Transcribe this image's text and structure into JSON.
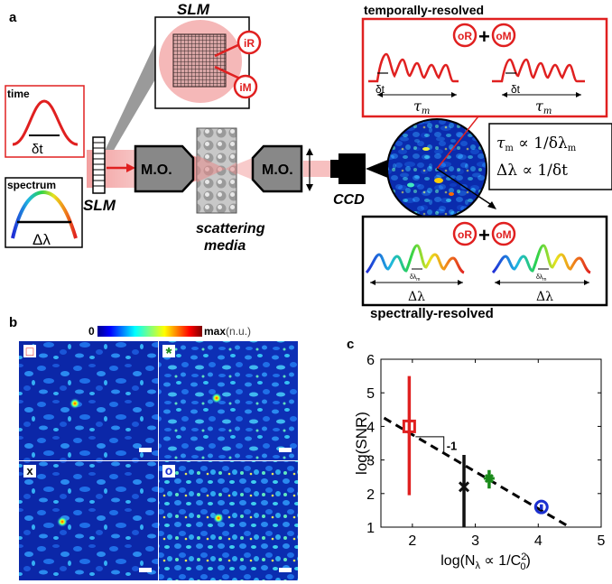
{
  "panel_labels": {
    "a": "a",
    "b": "b",
    "c": "c"
  },
  "panel_a": {
    "slm_top_title": "SLM",
    "slm_bottom_label": "SLM",
    "ir_badge": "iR",
    "im_badge": "iM",
    "time_box": {
      "title": "time",
      "pulse_label": "δt"
    },
    "spectrum_box": {
      "title": "spectrum",
      "width_label": "Δλ"
    },
    "objective_left": "M.O.",
    "objective_right": "M.O.",
    "scatter_label_1": "scattering",
    "scatter_label_2": "media",
    "ccd_label": "CCD",
    "temporal": {
      "heading": "temporally-resolved",
      "badge_or": "oR",
      "badge_om": "oM",
      "plus": "+",
      "dt_left": "δt",
      "dt_right": "δt",
      "tau_left": "τ",
      "tau_right": "τ",
      "tau_sub": "m"
    },
    "relations": {
      "line1": "τ",
      "line1_sub": "m",
      "line1_rest": " ∝ 1/δλ",
      "line1_rest_sub": "m",
      "line2": "Δλ ∝ 1/δt"
    },
    "spectral": {
      "heading": "spectrally-resolved",
      "badge_or": "oR",
      "badge_om": "oM",
      "plus": "+",
      "dlm_left": "δλ",
      "dlm_right": "δλ",
      "dlm_sub": "m",
      "dl_left": "Δλ",
      "dl_right": "Δλ"
    }
  },
  "panel_b": {
    "colorbar_min": "0",
    "colorbar_max": "max",
    "colorbar_unit": "(n.u.)",
    "markers": [
      "□",
      "*",
      "x",
      "o"
    ],
    "marker_colors": [
      "#e02020",
      "#1a8a1a",
      "#111111",
      "#1a2fd0"
    ]
  },
  "chart_data": {
    "type": "scatter",
    "xlabel": "log(N",
    "xlabel_sub": "λ",
    "xlabel_rest": " ∝ 1/C",
    "xlabel_rest_sup": "2",
    "xlabel_rest_sub": "0",
    "xlabel_end": ")",
    "ylabel": "log(SNR)",
    "xlim": [
      1.5,
      5
    ],
    "ylim": [
      1,
      6
    ],
    "xticks": [
      "2",
      "3",
      "4",
      "5"
    ],
    "yticks": [
      "1",
      "2",
      "3",
      "4",
      "5",
      "6"
    ],
    "slope_label": "-1",
    "fit_line": {
      "x": [
        1.55,
        4.5
      ],
      "y": [
        4.25,
        0.95
      ]
    },
    "series": [
      {
        "marker": "square",
        "color": "#e02020",
        "x": 1.95,
        "y": 4.0,
        "err_low": 2.05,
        "err_high": 1.5
      },
      {
        "marker": "x",
        "color": "#111111",
        "x": 2.82,
        "y": 2.2,
        "err_low": 1.2,
        "err_high": 0.95
      },
      {
        "marker": "star",
        "color": "#1a8a1a",
        "x": 3.22,
        "y": 2.45,
        "err_low": 0.3,
        "err_high": 0.25
      },
      {
        "marker": "circle",
        "color": "#1a2fd0",
        "x": 4.05,
        "y": 1.6,
        "err_low": 0.08,
        "err_high": 0.08
      }
    ]
  }
}
